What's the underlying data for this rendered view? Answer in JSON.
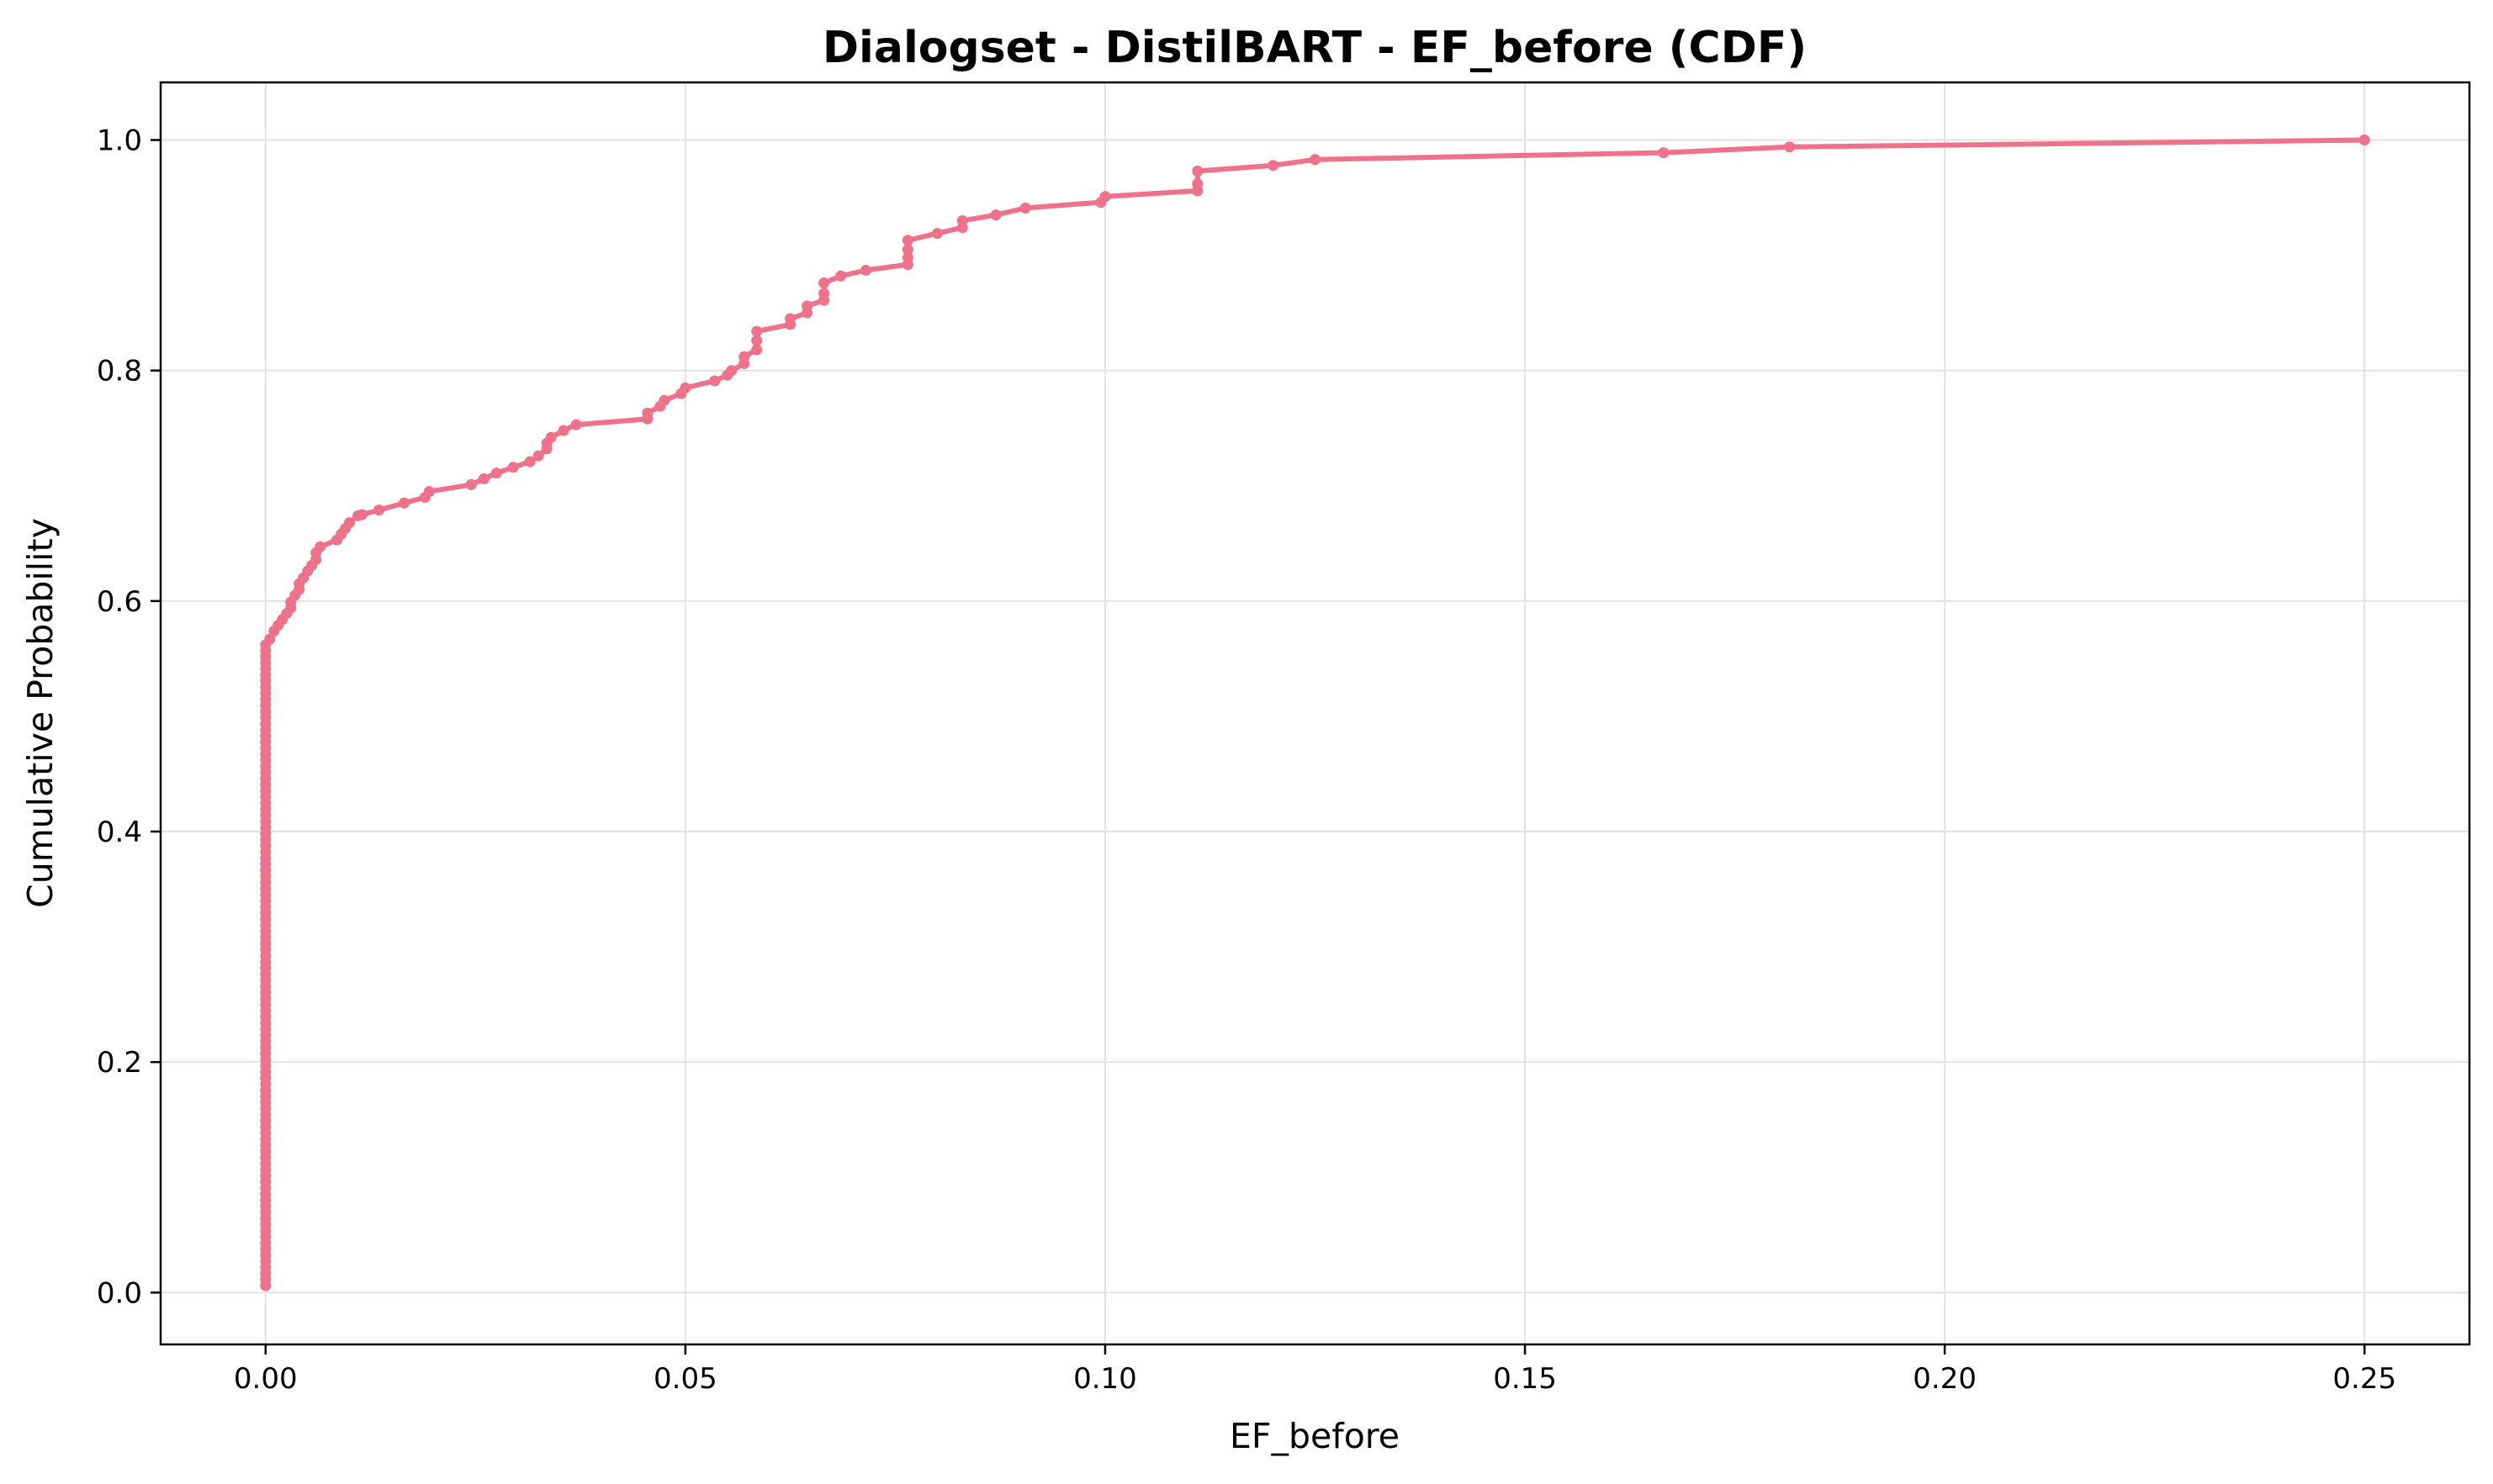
{
  "chart_data": {
    "type": "line",
    "title": "Dialogset - DistilBART - EF_before (CDF)",
    "xlabel": "EF_before",
    "ylabel": "Cumulative Probability",
    "xlim": [
      -0.0125,
      0.2625
    ],
    "ylim": [
      -0.045,
      1.05
    ],
    "xticks": [
      0.0,
      0.05,
      0.1,
      0.15,
      0.2,
      0.25
    ],
    "xtick_labels": [
      "0.00",
      "0.05",
      "0.10",
      "0.15",
      "0.20",
      "0.25"
    ],
    "yticks": [
      0.0,
      0.2,
      0.4,
      0.6,
      0.8,
      1.0
    ],
    "ytick_labels": [
      "0.0",
      "0.2",
      "0.4",
      "0.6",
      "0.8",
      "1.0"
    ],
    "grid": true,
    "color": "#f0718a",
    "zero_step": {
      "x": 0.0,
      "y_from": 0.006,
      "y_to": 0.562,
      "step": 0.0053
    },
    "series": [
      {
        "x": [
          0.0,
          0.0005,
          0.001,
          0.0015,
          0.002,
          0.0025,
          0.003,
          0.003,
          0.0035,
          0.004,
          0.004,
          0.0045,
          0.005,
          0.0055,
          0.006,
          0.006,
          0.0065,
          0.0085,
          0.009,
          0.0095,
          0.01,
          0.011,
          0.0115,
          0.0135,
          0.0165,
          0.019,
          0.0195,
          0.0245,
          0.026,
          0.0275,
          0.0295,
          0.0315,
          0.0325,
          0.0335,
          0.0335,
          0.034,
          0.0355,
          0.037,
          0.0455,
          0.0455,
          0.047,
          0.0475,
          0.0495,
          0.05,
          0.0535,
          0.055,
          0.0555,
          0.057,
          0.057,
          0.0585,
          0.0585,
          0.0585,
          0.0625,
          0.0625,
          0.0645,
          0.0645,
          0.0665,
          0.0665,
          0.0665,
          0.0685,
          0.0715,
          0.0765,
          0.0765,
          0.0765,
          0.0765,
          0.08,
          0.083,
          0.083,
          0.087,
          0.0905,
          0.0995,
          0.1,
          0.111,
          0.111,
          0.111,
          0.12,
          0.125,
          0.1665,
          0.1815,
          0.25
        ],
        "y": [
          0.562,
          0.567,
          0.574,
          0.579,
          0.584,
          0.589,
          0.594,
          0.599,
          0.605,
          0.61,
          0.615,
          0.62,
          0.626,
          0.631,
          0.636,
          0.642,
          0.647,
          0.653,
          0.658,
          0.663,
          0.668,
          0.674,
          0.675,
          0.679,
          0.685,
          0.69,
          0.695,
          0.701,
          0.706,
          0.711,
          0.716,
          0.721,
          0.726,
          0.732,
          0.737,
          0.742,
          0.748,
          0.753,
          0.758,
          0.763,
          0.769,
          0.774,
          0.78,
          0.785,
          0.791,
          0.796,
          0.8,
          0.806,
          0.812,
          0.818,
          0.826,
          0.834,
          0.84,
          0.845,
          0.85,
          0.856,
          0.861,
          0.867,
          0.876,
          0.882,
          0.887,
          0.892,
          0.898,
          0.905,
          0.913,
          0.919,
          0.924,
          0.93,
          0.935,
          0.941,
          0.946,
          0.951,
          0.956,
          0.962,
          0.973,
          0.978,
          0.983,
          0.989,
          0.994,
          1.0
        ]
      }
    ]
  }
}
